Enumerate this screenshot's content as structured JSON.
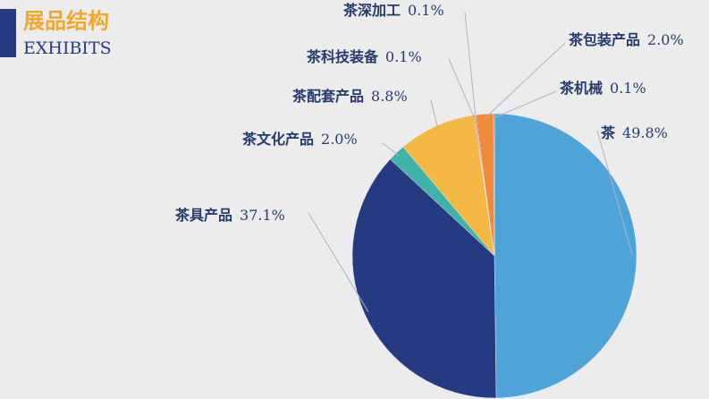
{
  "chart_data": {
    "type": "pie",
    "title": "展品结构",
    "subtitle": "EXHIBITS",
    "categories": [
      "茶",
      "茶具产品",
      "茶文化产品",
      "茶配套产品",
      "茶科技装备",
      "茶深加工",
      "茶包装产品",
      "茶机械"
    ],
    "values": [
      49.8,
      37.1,
      2.0,
      8.8,
      0.1,
      0.1,
      2.0,
      0.1
    ],
    "value_labels": [
      "49.8%",
      "37.1%",
      "2.0%",
      "8.8%",
      "0.1%",
      "0.1%",
      "2.0%",
      "0.1%"
    ],
    "colors": [
      "#4ea3d8",
      "#253a80",
      "#3fb3a8",
      "#f3b844",
      "#d9342b",
      "#9a2b2b",
      "#ee8a3a",
      "#c0392b"
    ]
  }
}
